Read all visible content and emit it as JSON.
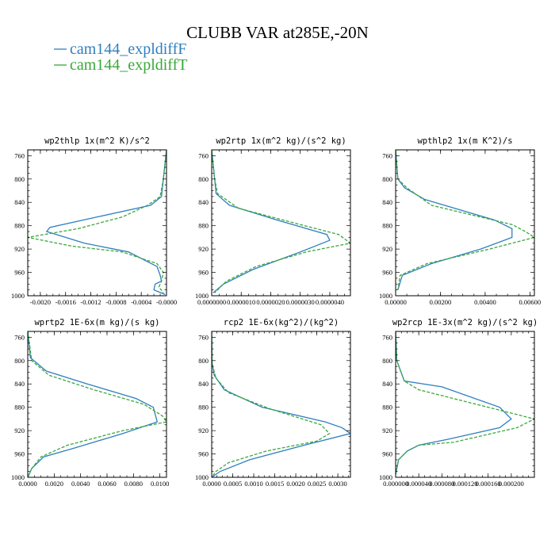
{
  "figure": {
    "title": "CLUBB VAR at285E,-20N",
    "legend": [
      {
        "label": "cam144_expldiffF",
        "color": "#2f7fbf",
        "dash": "solid"
      },
      {
        "label": "cam144_expldiffT",
        "color": "#3aa83a",
        "dash": "dashed"
      }
    ]
  },
  "chart_data": [
    {
      "type": "line",
      "title": "wp2thlp  1x(m^2 K)/s^2",
      "xlim": [
        -0.0022,
        0.0
      ],
      "ylim": [
        1000,
        750
      ],
      "yticks": [
        760,
        800,
        840,
        880,
        920,
        960,
        1000
      ],
      "xtick_labels": [
        {
          "v": -0.002,
          "label": "-0.0020"
        },
        {
          "v": -0.0016,
          "label": "-0.0016"
        },
        {
          "v": -0.0012,
          "label": "-0.0012"
        },
        {
          "v": -0.0008,
          "label": "-0.0008"
        },
        {
          "v": -0.0004,
          "label": "-0.0004"
        },
        {
          "v": 0.0,
          "label": "-0.0000"
        }
      ],
      "series": [
        {
          "name": "cam144_expldiffF",
          "points": [
            [
              0.0,
              750
            ],
            [
              -5e-05,
              800
            ],
            [
              -8e-05,
              830
            ],
            [
              -0.00025,
              845
            ],
            [
              -0.0011,
              865
            ],
            [
              -0.00185,
              883
            ],
            [
              -0.0019,
              890
            ],
            [
              -0.0013,
              910
            ],
            [
              -0.0006,
              925
            ],
            [
              -0.00015,
              950
            ],
            [
              -0.0001,
              965
            ],
            [
              -8e-05,
              975
            ],
            [
              -0.00018,
              980
            ],
            [
              -0.0002,
              990
            ],
            [
              -2e-05,
              998
            ]
          ]
        },
        {
          "name": "cam144_expldiffT",
          "points": [
            [
              0.0,
              750
            ],
            [
              -5e-05,
              800
            ],
            [
              -0.0001,
              830
            ],
            [
              -0.0003,
              845
            ],
            [
              -0.0007,
              865
            ],
            [
              -0.0014,
              885
            ],
            [
              -0.0022,
              900
            ],
            [
              -0.0015,
              915
            ],
            [
              -0.0007,
              925
            ],
            [
              -0.00015,
              945
            ],
            [
              -5e-05,
              960
            ],
            [
              -8e-05,
              975
            ],
            [
              -0.00012,
              985
            ],
            [
              -5e-05,
              995
            ]
          ]
        }
      ]
    },
    {
      "type": "line",
      "title": "wp2rtp  1x(m^2 kg)/(s^2 kg)",
      "xlim": [
        0.0,
        4.7e-06
      ],
      "ylim": [
        1000,
        750
      ],
      "yticks": [
        760,
        800,
        840,
        880,
        920,
        960,
        1000
      ],
      "xtick_labels": [
        {
          "v": 0.0,
          "label": "0.0000000"
        },
        {
          "v": 1e-06,
          "label": "0.0000010"
        },
        {
          "v": 2e-06,
          "label": "0.0000020"
        },
        {
          "v": 3e-06,
          "label": "0.0000030"
        },
        {
          "v": 4e-06,
          "label": "0.0000040"
        }
      ],
      "series": [
        {
          "name": "cam144_expldiffF",
          "points": [
            [
              0.0,
              750
            ],
            [
              1e-07,
              800
            ],
            [
              1.5e-07,
              825
            ],
            [
              6e-07,
              845
            ],
            [
              2.2e-06,
              870
            ],
            [
              3.9e-06,
              895
            ],
            [
              4e-06,
              905
            ],
            [
              3e-06,
              925
            ],
            [
              1.4e-06,
              955
            ],
            [
              4e-07,
              980
            ],
            [
              5e-08,
              995
            ]
          ]
        },
        {
          "name": "cam144_expldiffT",
          "points": [
            [
              0.0,
              750
            ],
            [
              1e-07,
              800
            ],
            [
              2e-07,
              825
            ],
            [
              9e-07,
              850
            ],
            [
              3e-06,
              878
            ],
            [
              4.3e-06,
              895
            ],
            [
              4.7e-06,
              910
            ],
            [
              3.2e-06,
              925
            ],
            [
              1.5e-06,
              950
            ],
            [
              5e-07,
              975
            ],
            [
              1e-07,
              995
            ]
          ]
        }
      ]
    },
    {
      "type": "line",
      "title": "wpthlp2  1x(m K^2)/s",
      "xlim": [
        0.0,
        0.0062
      ],
      "ylim": [
        1000,
        750
      ],
      "yticks": [
        760,
        800,
        840,
        880,
        920,
        960,
        1000
      ],
      "xtick_labels": [
        {
          "v": 0.0,
          "label": "0.00000"
        },
        {
          "v": 0.002,
          "label": "0.00200"
        },
        {
          "v": 0.004,
          "label": "0.00400"
        },
        {
          "v": 0.006,
          "label": "0.00600"
        }
      ],
      "series": [
        {
          "name": "cam144_expldiffF",
          "points": [
            [
              0.0,
              750
            ],
            [
              0.0001,
              800
            ],
            [
              0.0004,
              815
            ],
            [
              0.0013,
              835
            ],
            [
              0.0044,
              870
            ],
            [
              0.0052,
              885
            ],
            [
              0.0052,
              900
            ],
            [
              0.0038,
              920
            ],
            [
              0.0016,
              945
            ],
            [
              0.0003,
              965
            ],
            [
              0.0001,
              990
            ]
          ]
        },
        {
          "name": "cam144_expldiffT",
          "points": [
            [
              0.0,
              750
            ],
            [
              0.0001,
              800
            ],
            [
              0.0005,
              815
            ],
            [
              0.0016,
              845
            ],
            [
              0.0052,
              878
            ],
            [
              0.0058,
              890
            ],
            [
              0.0062,
              900
            ],
            [
              0.0042,
              920
            ],
            [
              0.0014,
              945
            ],
            [
              0.0002,
              965
            ],
            [
              0.0001,
              990
            ]
          ]
        }
      ]
    },
    {
      "type": "line",
      "title": "wprtp2  1E-6x(m kg)/(s kg)",
      "xlim": [
        0.0,
        0.0105
      ],
      "ylim": [
        1000,
        750
      ],
      "yticks": [
        760,
        800,
        840,
        880,
        920,
        960,
        1000
      ],
      "xtick_labels": [
        {
          "v": 0.0,
          "label": "0.0000"
        },
        {
          "v": 0.002,
          "label": "0.0020"
        },
        {
          "v": 0.004,
          "label": "0.0040"
        },
        {
          "v": 0.006,
          "label": "0.0060"
        },
        {
          "v": 0.008,
          "label": "0.0080"
        },
        {
          "v": 0.01,
          "label": "0.0100"
        }
      ],
      "series": [
        {
          "name": "cam144_expldiffF",
          "points": [
            [
              0.0,
              750
            ],
            [
              0.0002,
              795
            ],
            [
              0.0014,
              818
            ],
            [
              0.0045,
              840
            ],
            [
              0.0082,
              865
            ],
            [
              0.0095,
              880
            ],
            [
              0.0098,
              905
            ],
            [
              0.0072,
              925
            ],
            [
              0.0035,
              950
            ],
            [
              0.0012,
              965
            ],
            [
              0.0003,
              985
            ],
            [
              0.0,
              1000
            ]
          ]
        },
        {
          "name": "cam144_expldiffT",
          "points": [
            [
              0.0,
              750
            ],
            [
              0.0003,
              800
            ],
            [
              0.0016,
              825
            ],
            [
              0.005,
              850
            ],
            [
              0.0088,
              875
            ],
            [
              0.0102,
              895
            ],
            [
              0.0105,
              905
            ],
            [
              0.0072,
              920
            ],
            [
              0.003,
              945
            ],
            [
              0.001,
              965
            ],
            [
              0.0003,
              985
            ],
            [
              0.0,
              1000
            ]
          ]
        }
      ]
    },
    {
      "type": "line",
      "title": "rcp2  1E-6x(kg^2)/(kg^2)",
      "xlim": [
        0.0,
        0.0033
      ],
      "ylim": [
        1000,
        750
      ],
      "yticks": [
        760,
        800,
        840,
        880,
        920,
        960,
        1000
      ],
      "xtick_labels": [
        {
          "v": 0.0,
          "label": "0.0000"
        },
        {
          "v": 0.0005,
          "label": "0.0005"
        },
        {
          "v": 0.001,
          "label": "0.0010"
        },
        {
          "v": 0.0015,
          "label": "0.0015"
        },
        {
          "v": 0.002,
          "label": "0.0020"
        },
        {
          "v": 0.0025,
          "label": "0.0025"
        },
        {
          "v": 0.003,
          "label": "0.0030"
        }
      ],
      "series": [
        {
          "name": "cam144_expldiffF",
          "points": [
            [
              0.0,
              750
            ],
            [
              1e-05,
              805
            ],
            [
              6e-05,
              825
            ],
            [
              0.0003,
              850
            ],
            [
              0.0012,
              880
            ],
            [
              0.0027,
              905
            ],
            [
              0.0031,
              915
            ],
            [
              0.0033,
              925
            ],
            [
              0.0022,
              945
            ],
            [
              0.0009,
              970
            ],
            [
              0.0002,
              990
            ],
            [
              0.0,
              1000
            ]
          ]
        },
        {
          "name": "cam144_expldiffT",
          "points": [
            [
              0.0,
              750
            ],
            [
              1e-05,
              805
            ],
            [
              0.0001,
              830
            ],
            [
              0.0004,
              855
            ],
            [
              0.0014,
              883
            ],
            [
              0.0026,
              910
            ],
            [
              0.0028,
              925
            ],
            [
              0.0025,
              938
            ],
            [
              0.0013,
              955
            ],
            [
              0.0004,
              975
            ],
            [
              0.0001,
              990
            ],
            [
              0.0,
              1000
            ]
          ]
        }
      ]
    },
    {
      "type": "line",
      "title": "wp2rcp  1E-3x(m^2 kg)/(s^2 kg)",
      "xlim": [
        0.0,
        0.00024
      ],
      "ylim": [
        1000,
        750
      ],
      "yticks": [
        760,
        800,
        840,
        880,
        920,
        960,
        1000
      ],
      "xtick_labels": [
        {
          "v": 0.0,
          "label": "0.000000"
        },
        {
          "v": 4e-05,
          "label": "0.000040"
        },
        {
          "v": 8e-05,
          "label": "0.000080"
        },
        {
          "v": 0.00012,
          "label": "0.000120"
        },
        {
          "v": 0.00016,
          "label": "0.000160"
        },
        {
          "v": 0.0002,
          "label": "0.000200"
        }
      ],
      "series": [
        {
          "name": "cam144_expldiffF",
          "points": [
            [
              0.0,
              750
            ],
            [
              2e-06,
              800
            ],
            [
              1.5e-05,
              835
            ],
            [
              8e-05,
              845
            ],
            [
              0.00018,
              880
            ],
            [
              0.0002,
              900
            ],
            [
              0.00018,
              915
            ],
            [
              9e-05,
              935
            ],
            [
              4e-05,
              945
            ],
            [
              2e-05,
              955
            ],
            [
              5e-06,
              970
            ],
            [
              0.0,
              995
            ]
          ]
        },
        {
          "name": "cam144_expldiffT",
          "points": [
            [
              0.0,
              750
            ],
            [
              2e-06,
              800
            ],
            [
              1.5e-05,
              835
            ],
            [
              4e-05,
              850
            ],
            [
              0.00016,
              880
            ],
            [
              0.00024,
              900
            ],
            [
              0.00021,
              915
            ],
            [
              0.0001,
              940
            ],
            [
              4e-05,
              945
            ],
            [
              2e-05,
              955
            ],
            [
              5e-06,
              970
            ],
            [
              0.0,
              995
            ]
          ]
        }
      ]
    }
  ]
}
